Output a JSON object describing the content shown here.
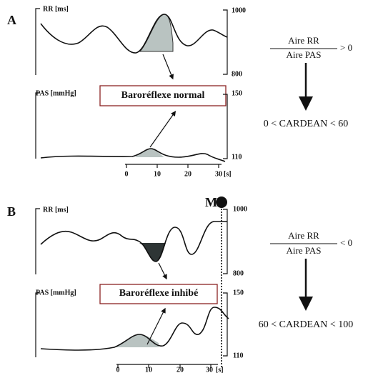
{
  "panels": [
    {
      "label": "A",
      "rr_axis": {
        "title": "RR [ms]",
        "top": "1000",
        "bottom": "800"
      },
      "pas_axis": {
        "title": "PAS [mmHg]",
        "top": "150",
        "bottom": "110"
      },
      "time_ticks": [
        "0",
        "10",
        "20",
        "30"
      ],
      "time_unit": "[s]",
      "box": "Baroréflexe normal",
      "ratio": {
        "numerator": "Aire RR",
        "denominator": "Aire PAS",
        "relation": "> 0"
      },
      "result": "0 < CARDEAN < 60"
    },
    {
      "label": "B",
      "rr_axis": {
        "title": "RR [ms]",
        "top": "1000",
        "bottom": "800"
      },
      "pas_axis": {
        "title": "PAS [mmHg]",
        "top": "150",
        "bottom": "110"
      },
      "time_ticks": [
        "0",
        "10",
        "20",
        "30"
      ],
      "time_unit": "[s]",
      "box": "Baroréflexe inhibé",
      "marker": "M",
      "ratio": {
        "numerator": "Aire RR",
        "denominator": "Aire PAS",
        "relation": "< 0"
      },
      "result": "60 < CARDEAN < 100"
    }
  ]
}
